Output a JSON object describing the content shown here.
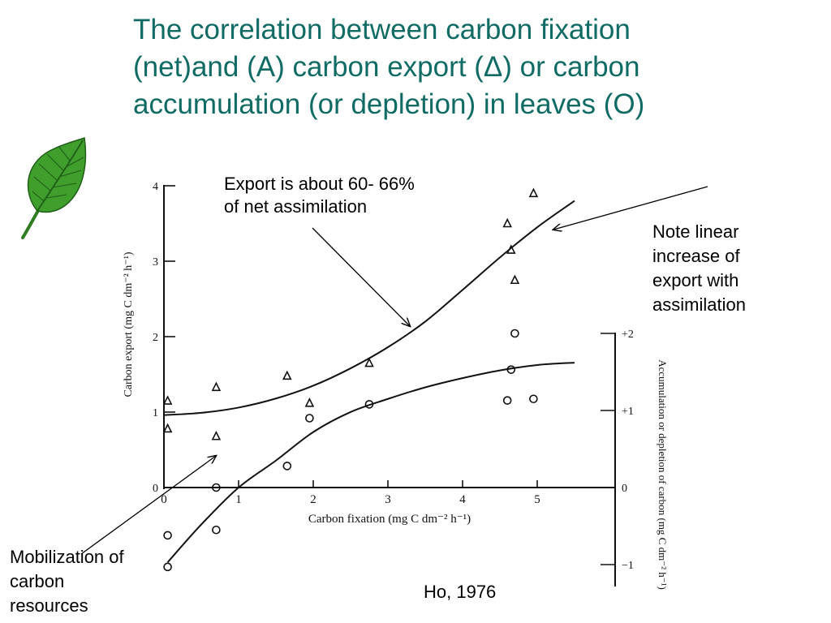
{
  "slide": {
    "title_lines": [
      "The correlation between carbon fixation",
      "(net)and (A) carbon export (Δ) or carbon",
      "accumulation (or depletion) in leaves (O)"
    ],
    "annotation_export": [
      "Export is about 60- 66%",
      "of  net assimilation"
    ],
    "annotation_linear": [
      "Note linear",
      "increase of",
      "export with",
      "assimilation"
    ],
    "annotation_mobilization": [
      "Mobilization of",
      "carbon",
      "resources"
    ],
    "citation": "Ho, 1976",
    "icons": [
      "leaf-icon"
    ],
    "colors": {
      "title": "#0f6b63",
      "leaf": "#3f9e2c"
    }
  },
  "chart_data": {
    "type": "scatter",
    "xlabel": "Carbon fixation  (mg C dm⁻² h⁻¹)",
    "ylabel_left": "Carbon export (mg C dm⁻² h⁻¹)",
    "ylabel_right": "Accumulation or depletion of carbon (mg C dm⁻² h⁻¹)",
    "xlim": [
      0,
      5.5
    ],
    "ylim_left": [
      0,
      4
    ],
    "ylim_right": [
      -1,
      2
    ],
    "x_ticks": [
      "0",
      "1",
      "2",
      "3",
      "4",
      "5"
    ],
    "y_left_ticks": [
      "0",
      "1",
      "2",
      "3",
      "4"
    ],
    "y_right_ticks": [
      "−1",
      "0",
      "+1",
      "+2"
    ],
    "series": [
      {
        "marker": "triangle",
        "axis": "left",
        "points": [
          [
            0.05,
            1.15
          ],
          [
            0.05,
            0.78
          ],
          [
            0.7,
            1.33
          ],
          [
            0.7,
            0.68
          ],
          [
            1.65,
            1.48
          ],
          [
            1.95,
            1.12
          ],
          [
            2.75,
            1.65
          ],
          [
            4.6,
            3.5
          ],
          [
            4.65,
            3.15
          ],
          [
            4.7,
            2.75
          ],
          [
            4.95,
            3.9
          ]
        ]
      },
      {
        "marker": "circle",
        "axis": "right",
        "points": [
          [
            0.05,
            -0.62
          ],
          [
            0.05,
            -1.03
          ],
          [
            0.7,
            0.0
          ],
          [
            0.7,
            -0.55
          ],
          [
            1.65,
            0.28
          ],
          [
            1.95,
            0.9
          ],
          [
            2.75,
            1.08
          ],
          [
            4.6,
            1.13
          ],
          [
            4.65,
            1.53
          ],
          [
            4.7,
            2.0
          ],
          [
            4.95,
            1.15
          ]
        ]
      }
    ],
    "fit_curves": [
      {
        "axis": "left",
        "points": [
          [
            0,
            0.96
          ],
          [
            0.5,
            0.99
          ],
          [
            1.0,
            1.06
          ],
          [
            1.5,
            1.18
          ],
          [
            2.0,
            1.35
          ],
          [
            2.5,
            1.58
          ],
          [
            3.0,
            1.86
          ],
          [
            3.5,
            2.2
          ],
          [
            4.0,
            2.62
          ],
          [
            4.5,
            3.05
          ],
          [
            5.0,
            3.45
          ],
          [
            5.5,
            3.8
          ]
        ]
      },
      {
        "axis": "right",
        "points": [
          [
            0.05,
            -0.97
          ],
          [
            0.5,
            -0.48
          ],
          [
            1.0,
            0.0
          ],
          [
            1.5,
            0.35
          ],
          [
            2.0,
            0.72
          ],
          [
            2.5,
            0.98
          ],
          [
            3.0,
            1.15
          ],
          [
            3.5,
            1.3
          ],
          [
            4.0,
            1.42
          ],
          [
            4.5,
            1.52
          ],
          [
            5.0,
            1.59
          ],
          [
            5.5,
            1.62
          ]
        ]
      }
    ]
  }
}
